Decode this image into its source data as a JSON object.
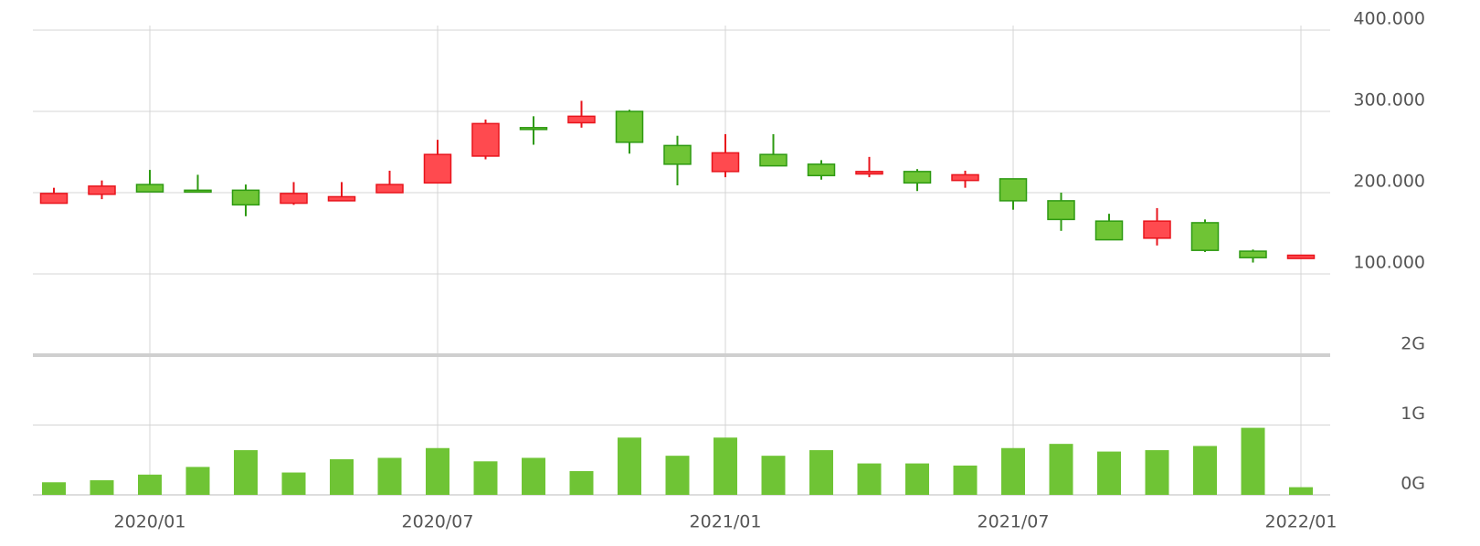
{
  "chart_data": {
    "type": "candlestick",
    "categories": [
      null,
      null,
      "2020/01",
      null,
      null,
      null,
      null,
      null,
      "2020/07",
      null,
      null,
      null,
      null,
      null,
      "2021/01",
      null,
      null,
      null,
      null,
      null,
      "2021/07",
      null,
      null,
      null,
      null,
      null,
      "2022/01"
    ],
    "open": [
      187,
      198,
      210,
      203,
      203,
      187,
      190,
      200,
      212,
      245,
      280,
      286,
      300,
      258,
      226,
      247,
      235,
      223,
      226,
      215,
      217,
      190,
      165,
      144,
      163,
      128,
      119
    ],
    "high": [
      206,
      215,
      228,
      222,
      210,
      213,
      213,
      227,
      265,
      290,
      294,
      313,
      302,
      270,
      272,
      272,
      240,
      244,
      229,
      227,
      217,
      200,
      174,
      181,
      167,
      130,
      123
    ],
    "low": [
      187,
      192,
      201,
      201,
      171,
      185,
      190,
      200,
      212,
      241,
      259,
      280,
      248,
      209,
      219,
      233,
      216,
      219,
      202,
      206,
      179,
      153,
      142,
      135,
      127,
      114,
      119
    ],
    "close": [
      199,
      208,
      201,
      201,
      185,
      199,
      195,
      210,
      247,
      285,
      278,
      294,
      262,
      235,
      249,
      233,
      221,
      226,
      212,
      222,
      190,
      167,
      142,
      165,
      129,
      120,
      123
    ],
    "up_color": "#ff4a4f",
    "down_color": "#6fc435",
    "ylim": [
      0,
      400
    ],
    "yticks": [
      {
        "value": 100,
        "label": "100.000"
      },
      {
        "value": 200,
        "label": "200.000"
      },
      {
        "value": 300,
        "label": "300.000"
      },
      {
        "value": 400,
        "label": "400.000"
      }
    ],
    "volume": [
      0.18,
      0.21,
      0.29,
      0.4,
      0.64,
      0.32,
      0.51,
      0.53,
      0.67,
      0.48,
      0.53,
      0.34,
      0.82,
      0.56,
      0.82,
      0.56,
      0.64,
      0.45,
      0.45,
      0.42,
      0.67,
      0.73,
      0.62,
      0.64,
      0.7,
      0.96,
      0.11
    ],
    "volume_color": "#6fc435",
    "volume_ylim": [
      0,
      2
    ],
    "volume_yticks": [
      {
        "value": 0,
        "label": "0G"
      },
      {
        "value": 1,
        "label": "1G"
      },
      {
        "value": 2,
        "label": "2G"
      }
    ],
    "grid": true
  }
}
